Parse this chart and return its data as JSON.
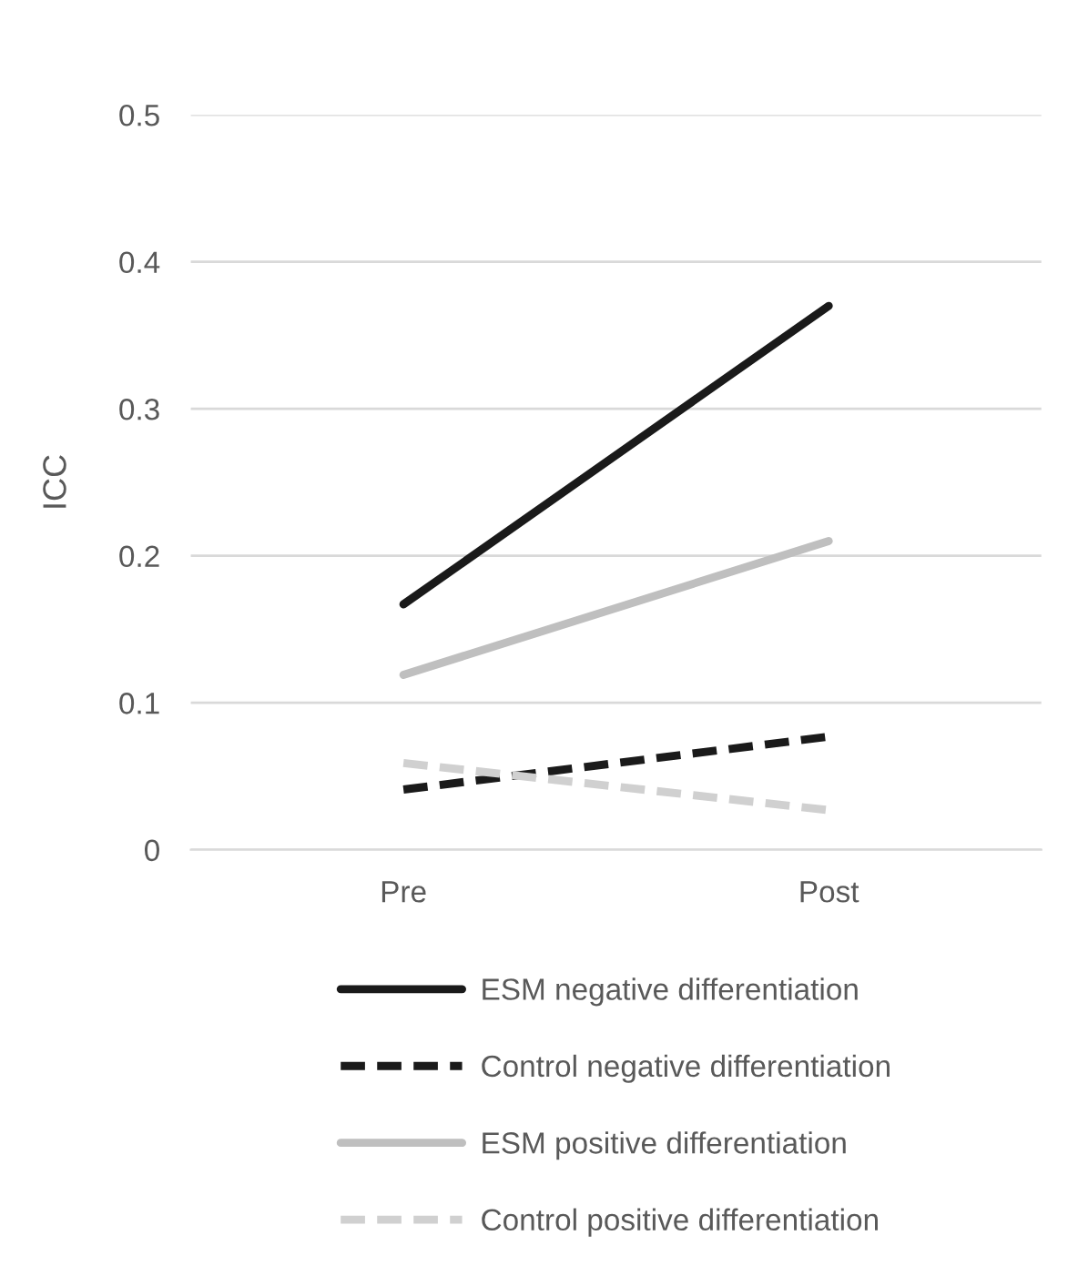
{
  "chart_data": {
    "type": "line",
    "ylabel": "ICC",
    "categories": [
      "Pre",
      "Post"
    ],
    "series": [
      {
        "name": "ESM negative differentiation",
        "color": "#1a1a1a",
        "line_style": "solid",
        "values": [
          0.167,
          0.37
        ]
      },
      {
        "name": "Control negative differentiation",
        "color": "#1a1a1a",
        "line_style": "dashed",
        "values": [
          0.041,
          0.077
        ]
      },
      {
        "name": "ESM positive differentiation",
        "color": "#bfbfbf",
        "line_style": "solid",
        "values": [
          0.119,
          0.21
        ]
      },
      {
        "name": "Control positive differentiation",
        "color": "#d0d0d0",
        "line_style": "dashed",
        "values": [
          0.059,
          0.027
        ]
      }
    ],
    "ylim": [
      0,
      0.5
    ],
    "yticks": [
      0,
      0.1,
      0.2,
      0.3,
      0.4,
      0.5
    ],
    "grid": "y",
    "legend": "bottom",
    "marker": "none"
  }
}
